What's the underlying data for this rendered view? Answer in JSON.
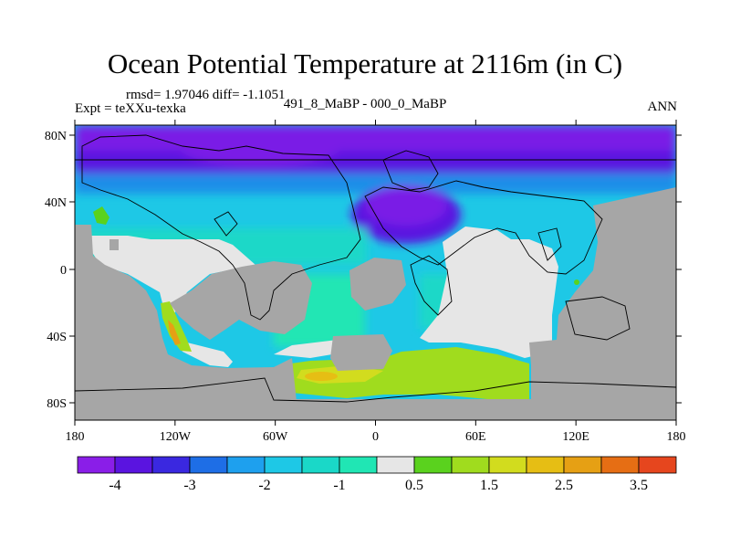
{
  "header": {
    "title": "Ocean Potential Temperature at 2116m (in C)",
    "stats": "rmsd= 1.97046  diff= -1.1051",
    "experiment": "Expt = teXXu-texka",
    "comparison": "491_8_MaBP - 000_0_MaBP",
    "season": "ANN"
  },
  "axes": {
    "lon_labels": [
      "180",
      "120W",
      "60W",
      "0",
      "60E",
      "120E",
      "180"
    ],
    "lat_labels": [
      "80N",
      "40N",
      "0",
      "40S",
      "80S"
    ]
  },
  "colors": {
    "land": "#a6a6a6",
    "zero": "#e6e6e6"
  },
  "colorbar": {
    "colors": [
      "#8a1ee8",
      "#5a14e0",
      "#3a28e0",
      "#1e6ee6",
      "#1ea0ee",
      "#1ec8e6",
      "#1ad8c8",
      "#20e6b4",
      "#e6e6e6",
      "#5ad21e",
      "#a0dc1e",
      "#d2dc1e",
      "#e6be14",
      "#e6a014",
      "#e66e14",
      "#e6461e"
    ],
    "labels": [
      "-4",
      "-3",
      "-2",
      "-1",
      "0.5",
      "1.5",
      "2.5",
      "3.5"
    ]
  }
}
